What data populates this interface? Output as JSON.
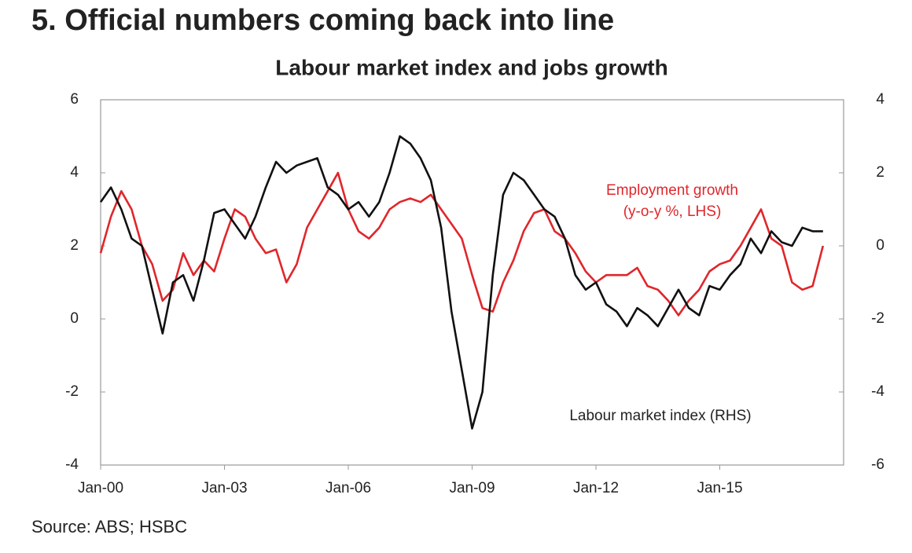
{
  "chart_data": {
    "type": "line",
    "title": "5. Official numbers coming back into line",
    "subtitle": "Labour market index and jobs growth",
    "source": "Source: ABS; HSBC",
    "annotations": [
      "Employment growth",
      "(y-o-y %, LHS)",
      "Labour market index (RHS)"
    ],
    "categories": [
      "Jan-00",
      null,
      null,
      null,
      null,
      null,
      null,
      null,
      null,
      null,
      null,
      null,
      "Jan-03",
      null,
      null,
      null,
      null,
      null,
      null,
      null,
      null,
      null,
      null,
      null,
      "Jan-06",
      null,
      null,
      null,
      null,
      null,
      null,
      null,
      null,
      null,
      null,
      null,
      "Jan-09",
      null,
      null,
      null,
      null,
      null,
      null,
      null,
      null,
      null,
      null,
      null,
      "Jan-12",
      null,
      null,
      null,
      null,
      null,
      null,
      null,
      null,
      null,
      null,
      null,
      "Jan-15",
      null,
      null,
      null,
      null,
      null,
      null,
      null,
      null,
      null,
      null
    ],
    "ylim": [
      -4,
      6
    ],
    "yticks": [
      -4,
      -2,
      0,
      2,
      4,
      6
    ],
    "y2lim": [
      -6,
      4
    ],
    "y2ticks": [
      -6,
      -4,
      -2,
      0,
      2,
      4
    ],
    "grid": false,
    "series": [
      {
        "name": "Employment growth (y-o-y %, LHS)",
        "color": "#e0262b",
        "values": [
          1.8,
          2.8,
          3.5,
          3.0,
          2.0,
          1.5,
          0.5,
          0.8,
          1.8,
          1.2,
          1.6,
          1.3,
          2.2,
          3.0,
          2.8,
          2.2,
          1.8,
          1.9,
          1.0,
          1.5,
          2.5,
          3.0,
          3.5,
          4.0,
          3.0,
          2.4,
          2.2,
          2.5,
          3.0,
          3.2,
          3.3,
          3.2,
          3.4,
          3.0,
          2.6,
          2.2,
          1.2,
          0.3,
          0.2,
          1.0,
          1.6,
          2.4,
          2.9,
          3.0,
          2.4,
          2.2,
          1.8,
          1.3,
          1.0,
          1.2,
          1.2,
          1.2,
          1.4,
          0.9,
          0.8,
          0.5,
          0.1,
          0.5,
          0.8,
          1.3,
          1.5,
          1.6,
          2.0,
          2.5,
          3.0,
          2.2,
          2.0,
          1.0,
          0.8,
          0.9,
          2.0
        ]
      },
      {
        "name": "Labour market index (RHS)",
        "color": "#111111",
        "axis": "y2",
        "values": [
          1.2,
          1.6,
          1.0,
          0.2,
          0.0,
          -1.2,
          -2.4,
          -1.0,
          -0.8,
          -1.5,
          -0.4,
          0.9,
          1.0,
          0.6,
          0.2,
          0.8,
          1.6,
          2.3,
          2.0,
          2.2,
          2.3,
          2.4,
          1.6,
          1.4,
          1.0,
          1.2,
          0.8,
          1.2,
          2.0,
          3.0,
          2.8,
          2.4,
          1.8,
          0.5,
          -1.8,
          -3.4,
          -5.0,
          -4.0,
          -0.8,
          1.4,
          2.0,
          1.8,
          1.4,
          1.0,
          0.8,
          0.2,
          -0.8,
          -1.2,
          -1.0,
          -1.6,
          -1.8,
          -2.2,
          -1.7,
          -1.9,
          -2.2,
          -1.7,
          -1.2,
          -1.7,
          -1.9,
          -1.1,
          -1.2,
          -0.8,
          -0.5,
          0.2,
          -0.2,
          0.4,
          0.1,
          0.0,
          0.5,
          0.4,
          0.4
        ]
      }
    ]
  }
}
